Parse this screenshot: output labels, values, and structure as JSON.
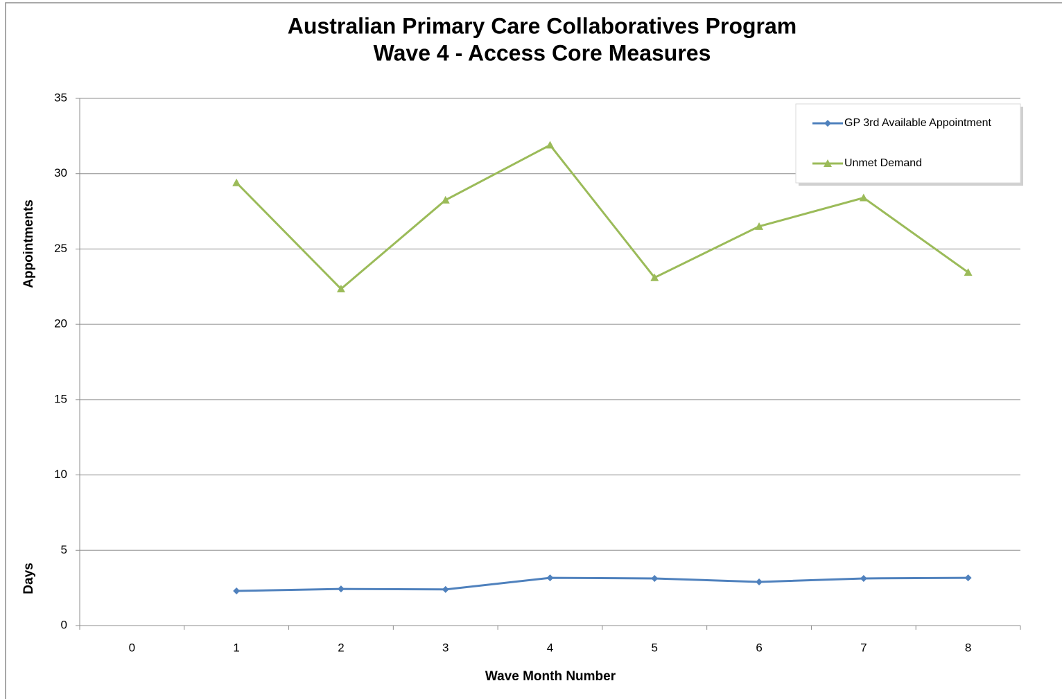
{
  "chart_data": {
    "type": "line",
    "title": [
      "Australian Primary Care Collaboratives Program",
      "Wave 4 - Access Core Measures"
    ],
    "y_axis_labels": [
      "Appointments",
      "Days"
    ],
    "x_axis_label": "Wave Month Number",
    "categories": [
      "0",
      "1",
      "2",
      "3",
      "4",
      "5",
      "6",
      "7",
      "8"
    ],
    "series": [
      {
        "name": "GP 3rd Available Appointment",
        "color": "#4f81bd",
        "marker": "diamond",
        "values": [
          null,
          2.3,
          2.43,
          2.4,
          3.17,
          3.13,
          2.9,
          3.13,
          3.17
        ]
      },
      {
        "name": "Unmet Demand",
        "color": "#9bbb59",
        "marker": "triangle",
        "values": [
          null,
          29.4,
          22.35,
          28.25,
          31.9,
          23.1,
          26.5,
          28.4,
          23.45
        ]
      }
    ],
    "ylim": [
      0,
      35
    ],
    "yticks": [
      0,
      5,
      10,
      15,
      20,
      25,
      30,
      35
    ],
    "grid": true,
    "legend": "upper right"
  }
}
